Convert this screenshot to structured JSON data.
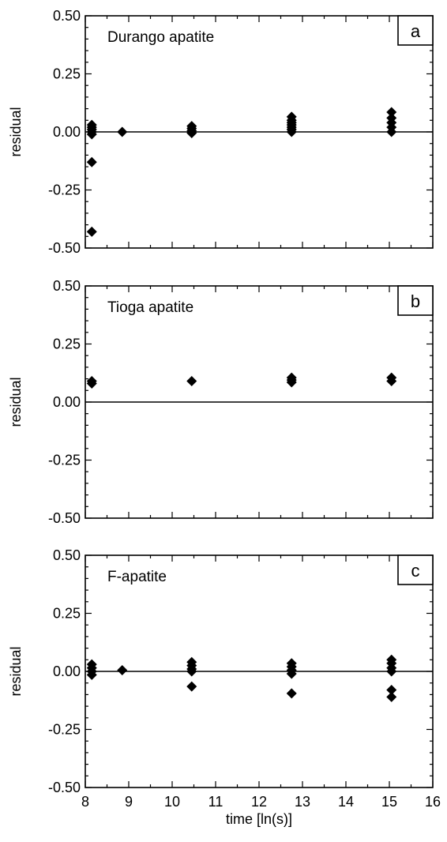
{
  "chart_data": [
    {
      "type": "scatter",
      "panel_label": "a",
      "annotation": "Durango apatite",
      "ylabel": "residual",
      "xlabel": "",
      "xlim": [
        8,
        16
      ],
      "ylim": [
        -0.5,
        0.5
      ],
      "yticks": [
        "0.50",
        "0.25",
        "0.00",
        "-0.25",
        "-0.50"
      ],
      "xticks": [],
      "reference_line_y": 0,
      "marker": "diamond",
      "points": [
        {
          "x": 8.15,
          "y": 0.03
        },
        {
          "x": 8.15,
          "y": 0.02
        },
        {
          "x": 8.15,
          "y": 0.01
        },
        {
          "x": 8.15,
          "y": 0.0
        },
        {
          "x": 8.15,
          "y": -0.01
        },
        {
          "x": 8.15,
          "y": -0.13
        },
        {
          "x": 8.15,
          "y": -0.43
        },
        {
          "x": 8.85,
          "y": 0.0
        },
        {
          "x": 10.45,
          "y": 0.025
        },
        {
          "x": 10.45,
          "y": 0.015
        },
        {
          "x": 10.45,
          "y": 0.005
        },
        {
          "x": 10.45,
          "y": -0.005
        },
        {
          "x": 12.75,
          "y": 0.065
        },
        {
          "x": 12.75,
          "y": 0.05
        },
        {
          "x": 12.75,
          "y": 0.04
        },
        {
          "x": 12.75,
          "y": 0.03
        },
        {
          "x": 12.75,
          "y": 0.02
        },
        {
          "x": 12.75,
          "y": 0.01
        },
        {
          "x": 12.75,
          "y": 0.0
        },
        {
          "x": 15.05,
          "y": 0.085
        },
        {
          "x": 15.05,
          "y": 0.06
        },
        {
          "x": 15.05,
          "y": 0.04
        },
        {
          "x": 15.05,
          "y": 0.02
        },
        {
          "x": 15.05,
          "y": 0.0
        }
      ]
    },
    {
      "type": "scatter",
      "panel_label": "b",
      "annotation": "Tioga apatite",
      "ylabel": "residual",
      "xlabel": "",
      "xlim": [
        8,
        16
      ],
      "ylim": [
        -0.5,
        0.5
      ],
      "yticks": [
        "0.50",
        "0.25",
        "0.00",
        "-0.25",
        "-0.50"
      ],
      "xticks": [],
      "reference_line_y": 0,
      "marker": "diamond",
      "points": [
        {
          "x": 8.15,
          "y": 0.09
        },
        {
          "x": 8.15,
          "y": 0.08
        },
        {
          "x": 10.45,
          "y": 0.09
        },
        {
          "x": 12.75,
          "y": 0.105
        },
        {
          "x": 12.75,
          "y": 0.095
        },
        {
          "x": 12.75,
          "y": 0.085
        },
        {
          "x": 15.05,
          "y": 0.105
        },
        {
          "x": 15.05,
          "y": 0.09
        }
      ]
    },
    {
      "type": "scatter",
      "panel_label": "c",
      "annotation": "F-apatite",
      "ylabel": "residual",
      "xlabel": "time [ln(s)]",
      "xlim": [
        8,
        16
      ],
      "ylim": [
        -0.5,
        0.5
      ],
      "yticks": [
        "0.50",
        "0.25",
        "0.00",
        "-0.25",
        "-0.50"
      ],
      "xticks": [
        "8",
        "9",
        "10",
        "11",
        "12",
        "13",
        "14",
        "15",
        "16"
      ],
      "reference_line_y": 0,
      "marker": "diamond",
      "points": [
        {
          "x": 8.15,
          "y": 0.03
        },
        {
          "x": 8.15,
          "y": 0.015
        },
        {
          "x": 8.15,
          "y": 0.0
        },
        {
          "x": 8.15,
          "y": -0.015
        },
        {
          "x": 8.85,
          "y": 0.005
        },
        {
          "x": 10.45,
          "y": 0.04
        },
        {
          "x": 10.45,
          "y": 0.025
        },
        {
          "x": 10.45,
          "y": 0.01
        },
        {
          "x": 10.45,
          "y": 0.0
        },
        {
          "x": 10.45,
          "y": -0.065
        },
        {
          "x": 12.75,
          "y": 0.035
        },
        {
          "x": 12.75,
          "y": 0.02
        },
        {
          "x": 12.75,
          "y": 0.005
        },
        {
          "x": 12.75,
          "y": -0.01
        },
        {
          "x": 12.75,
          "y": -0.095
        },
        {
          "x": 15.05,
          "y": 0.05
        },
        {
          "x": 15.05,
          "y": 0.035
        },
        {
          "x": 15.05,
          "y": 0.015
        },
        {
          "x": 15.05,
          "y": 0.0
        },
        {
          "x": 15.05,
          "y": -0.08
        },
        {
          "x": 15.05,
          "y": -0.11
        }
      ]
    }
  ]
}
